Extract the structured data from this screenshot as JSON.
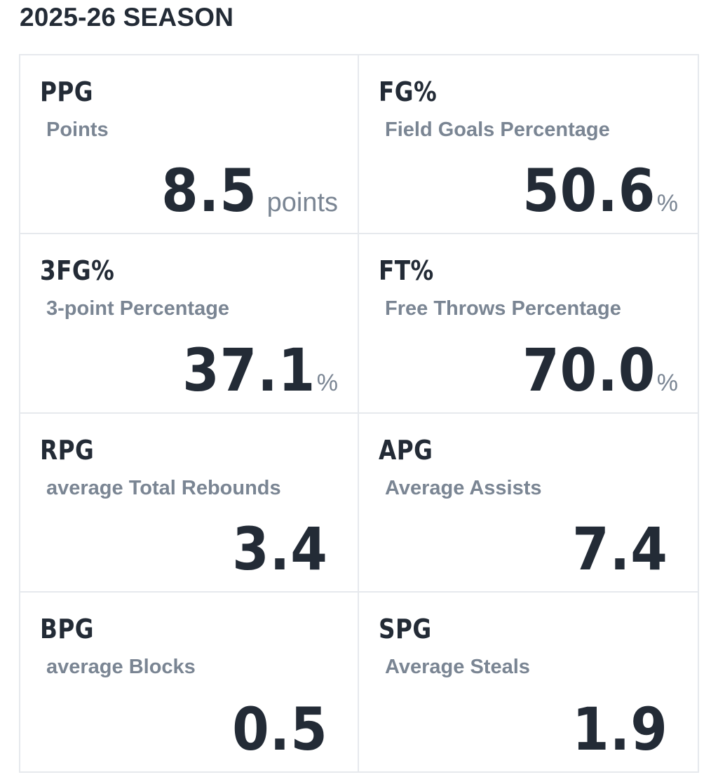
{
  "header": {
    "title": "2025-26 SEASON"
  },
  "stats": [
    {
      "abbr": "PPG",
      "label": "Points",
      "value": "8.5",
      "unit": "points"
    },
    {
      "abbr": "FG%",
      "label": "Field Goals Percentage",
      "value": "50.6",
      "unit": "%"
    },
    {
      "abbr": "3FG%",
      "label": "3-point Percentage",
      "value": "37.1",
      "unit": "%"
    },
    {
      "abbr": "FT%",
      "label": "Free Throws Percentage",
      "value": "70.0",
      "unit": "%"
    },
    {
      "abbr": "RPG",
      "label": "average Total Rebounds",
      "value": "3.4",
      "unit": ""
    },
    {
      "abbr": "APG",
      "label": "Average Assists",
      "value": "7.4",
      "unit": ""
    },
    {
      "abbr": "BPG",
      "label": "average Blocks",
      "value": "0.5",
      "unit": ""
    },
    {
      "abbr": "SPG",
      "label": "Average Steals",
      "value": "1.9",
      "unit": ""
    }
  ],
  "colors": {
    "text_dark": "#232b36",
    "text_muted": "#7a8593",
    "border": "#e6e9ed",
    "background": "#ffffff"
  }
}
